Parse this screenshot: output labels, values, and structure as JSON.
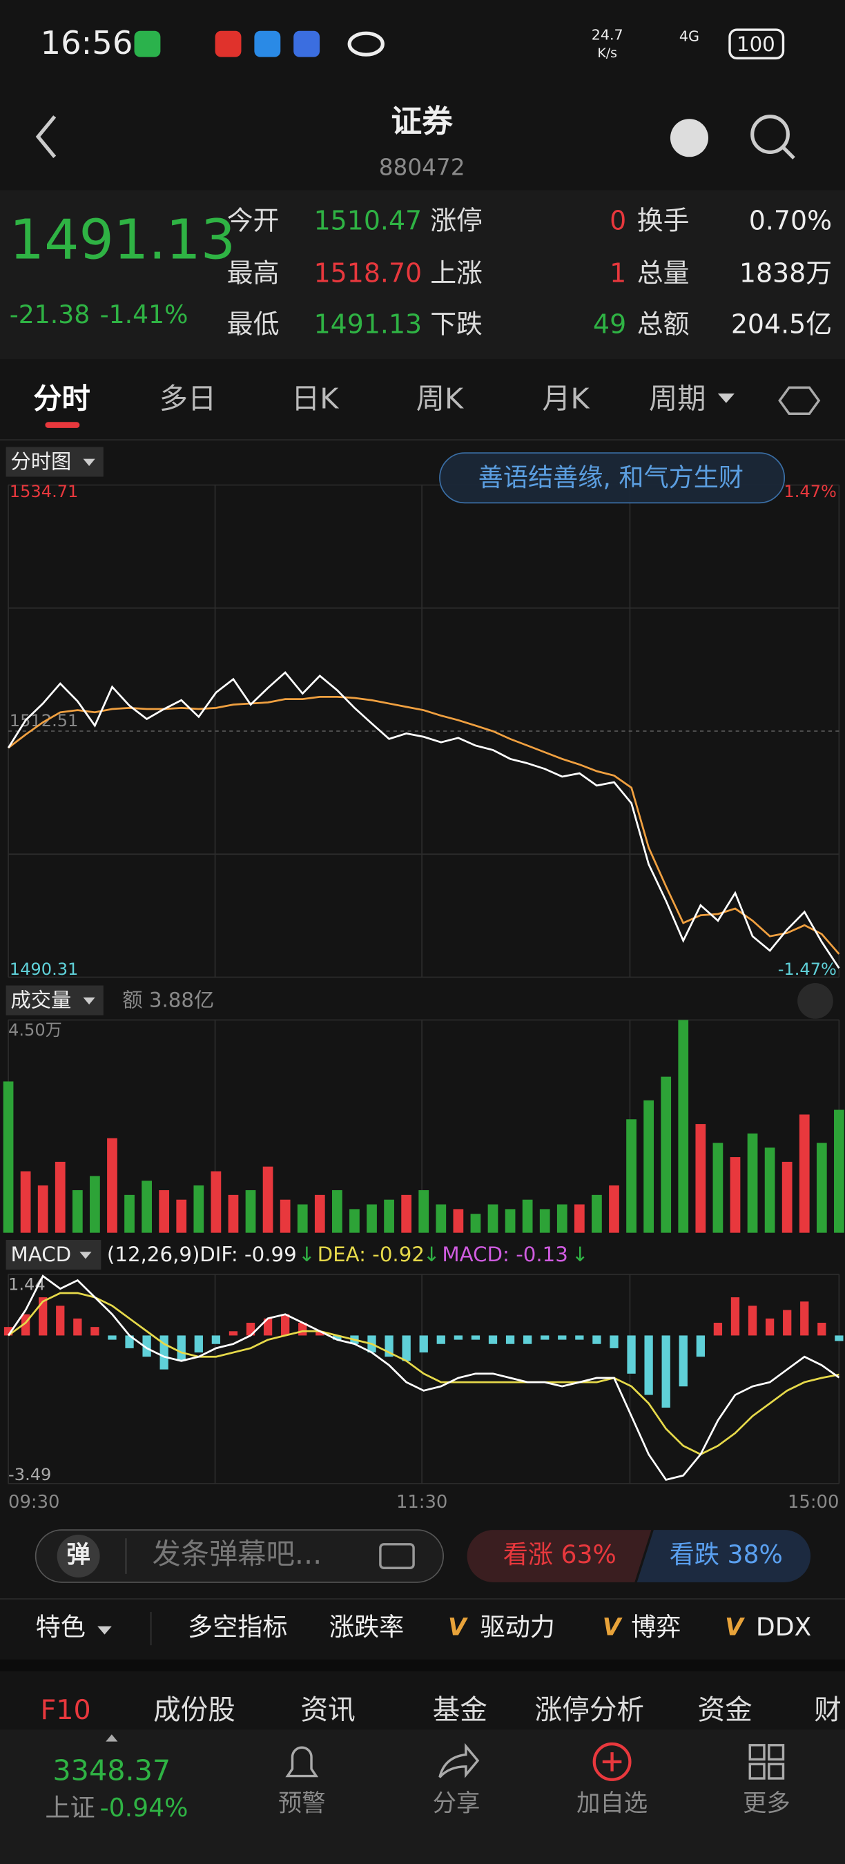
{
  "status_bar": {
    "time": "16:56",
    "net_speed": "24.7",
    "net_unit": "K/s",
    "network": "4G",
    "battery": "100"
  },
  "header": {
    "title": "证券",
    "code": "880472"
  },
  "quote": {
    "price": "1491.13",
    "change": "-21.38",
    "change_pct": "-1.41%",
    "stats": [
      [
        "今开",
        "1510.47",
        "涨停",
        "0",
        "换手",
        "0.70%"
      ],
      [
        "最高",
        "1518.70",
        "上涨",
        "1",
        "总量",
        "1838万"
      ],
      [
        "最低",
        "1491.13",
        "下跌",
        "49",
        "总额",
        "204.5亿"
      ]
    ]
  },
  "tabs": [
    "分时",
    "多日",
    "日K",
    "周K",
    "月K",
    "周期"
  ],
  "intraday": {
    "label": "分时图",
    "banner": "善语结善缘, 和气方生财",
    "ylim": [
      1490.31,
      1534.71
    ],
    "prev_close": 1512.51,
    "pct_top": "1.47%",
    "pct_bottom": "-1.47%",
    "price": {
      "color": "#ffffff",
      "values": [
        1511.0,
        1513.5,
        1515.0,
        1516.8,
        1515.2,
        1513.0,
        1516.5,
        1514.8,
        1513.6,
        1514.5,
        1515.3,
        1513.8,
        1516.0,
        1517.2,
        1514.9,
        1516.4,
        1517.8,
        1515.9,
        1517.5,
        1516.2,
        1514.6,
        1513.2,
        1511.8,
        1512.3,
        1512.0,
        1511.5,
        1511.9,
        1511.2,
        1510.8,
        1510.0,
        1509.6,
        1509.1,
        1508.4,
        1508.7,
        1507.6,
        1507.9,
        1506.0,
        1500.5,
        1497.2,
        1493.6,
        1496.8,
        1495.4,
        1497.9,
        1494.0,
        1492.7,
        1494.6,
        1496.2,
        1493.5,
        1491.13
      ]
    },
    "average": {
      "color": "#f0a040",
      "values": [
        1511.0,
        1512.2,
        1513.3,
        1514.2,
        1514.4,
        1514.2,
        1514.5,
        1514.6,
        1514.5,
        1514.5,
        1514.6,
        1514.5,
        1514.6,
        1514.9,
        1515.0,
        1515.1,
        1515.4,
        1515.4,
        1515.6,
        1515.6,
        1515.5,
        1515.3,
        1515.0,
        1514.7,
        1514.4,
        1513.9,
        1513.5,
        1513.0,
        1512.5,
        1511.8,
        1511.2,
        1510.6,
        1510.0,
        1509.5,
        1508.9,
        1508.5,
        1507.4,
        1502.0,
        1498.5,
        1495.2,
        1495.9,
        1496.0,
        1496.5,
        1495.4,
        1494.0,
        1494.3,
        1495.0,
        1494.2,
        1492.4
      ]
    }
  },
  "volume": {
    "label": "成交量",
    "amount": "额 3.88亿",
    "ylim": [
      0,
      4.5
    ],
    "yticks": [
      {
        "value": 4.5,
        "label": "4.50万"
      }
    ],
    "up_color": "#e8383d",
    "down_color": "#2da337",
    "values": [
      3.2,
      1.3,
      1.0,
      1.5,
      0.9,
      1.2,
      2.0,
      0.8,
      1.1,
      0.9,
      0.7,
      1.0,
      1.3,
      0.8,
      0.9,
      1.4,
      0.7,
      0.6,
      0.8,
      0.9,
      0.5,
      0.6,
      0.7,
      0.8,
      0.9,
      0.6,
      0.5,
      0.4,
      0.6,
      0.5,
      0.7,
      0.5,
      0.6,
      0.6,
      0.8,
      1.0,
      2.4,
      2.8,
      3.3,
      4.5,
      2.3,
      1.9,
      1.6,
      2.1,
      1.8,
      1.5,
      2.5,
      1.9,
      2.6
    ]
  },
  "macd": {
    "label": "MACD",
    "params": "(12,26,9)",
    "dif_label": "DIF: -0.99",
    "dea_label": "DEA: -0.92",
    "macd_label": "MACD: -0.13",
    "arrow": "↓",
    "ylim": [
      -3.49,
      1.44
    ],
    "yticks": [
      1.44,
      -3.49
    ],
    "dif": {
      "color": "#ffffff",
      "values": [
        0.0,
        0.6,
        1.4,
        1.1,
        1.3,
        0.9,
        0.5,
        0.0,
        -0.3,
        -0.5,
        -0.6,
        -0.5,
        -0.3,
        -0.2,
        0.0,
        0.4,
        0.5,
        0.3,
        0.1,
        -0.1,
        -0.2,
        -0.4,
        -0.7,
        -1.1,
        -1.3,
        -1.2,
        -1.0,
        -0.9,
        -0.9,
        -1.0,
        -1.1,
        -1.1,
        -1.2,
        -1.1,
        -1.0,
        -1.0,
        -1.9,
        -2.8,
        -3.4,
        -3.3,
        -2.8,
        -2.0,
        -1.4,
        -1.2,
        -1.1,
        -0.8,
        -0.5,
        -0.7,
        -0.99
      ]
    },
    "dea": {
      "color": "#e6d94a",
      "values": [
        0.0,
        0.3,
        0.8,
        1.0,
        1.0,
        0.9,
        0.7,
        0.4,
        0.1,
        -0.2,
        -0.4,
        -0.5,
        -0.5,
        -0.4,
        -0.3,
        -0.1,
        0.0,
        0.1,
        0.1,
        0.0,
        -0.1,
        -0.2,
        -0.4,
        -0.6,
        -0.9,
        -1.1,
        -1.1,
        -1.1,
        -1.1,
        -1.1,
        -1.1,
        -1.1,
        -1.1,
        -1.1,
        -1.1,
        -1.0,
        -1.2,
        -1.6,
        -2.2,
        -2.6,
        -2.8,
        -2.6,
        -2.3,
        -1.9,
        -1.6,
        -1.3,
        -1.1,
        -1.0,
        -0.92
      ]
    },
    "hist": {
      "up_color": "#e8383d",
      "down_color": "#5fd0d8",
      "values": [
        0.2,
        0.5,
        0.9,
        0.7,
        0.4,
        0.2,
        -0.1,
        -0.3,
        -0.5,
        -0.8,
        -0.6,
        -0.4,
        -0.2,
        0.1,
        0.3,
        0.4,
        0.5,
        0.3,
        0.1,
        -0.1,
        -0.2,
        -0.4,
        -0.5,
        -0.6,
        -0.4,
        -0.2,
        -0.1,
        -0.1,
        -0.2,
        -0.2,
        -0.2,
        -0.1,
        -0.1,
        -0.1,
        -0.2,
        -0.3,
        -0.9,
        -1.4,
        -1.7,
        -1.2,
        -0.5,
        0.3,
        0.9,
        0.7,
        0.4,
        0.6,
        0.8,
        0.3,
        -0.13
      ]
    }
  },
  "x_labels": [
    "09:30",
    "11:30",
    "15:00"
  ],
  "danmaku": {
    "icon": "弹",
    "placeholder": "发条弹幕吧...",
    "bull": "看涨 63%",
    "bear": "看跌 38%"
  },
  "indicators": {
    "feature": "特色",
    "items": [
      "多空指标",
      "涨跌率",
      "驱动力",
      "博弈",
      "DDX"
    ],
    "vip_mark": "V"
  },
  "bottom_tabs": [
    "F10",
    "成份股",
    "资讯",
    "基金",
    "涨停分析",
    "资金",
    "财"
  ],
  "footer": {
    "index_value": "3348.37",
    "index_name": "上证",
    "index_change": "-0.94%",
    "actions": [
      "预警",
      "分享",
      "加自选",
      "更多"
    ]
  }
}
